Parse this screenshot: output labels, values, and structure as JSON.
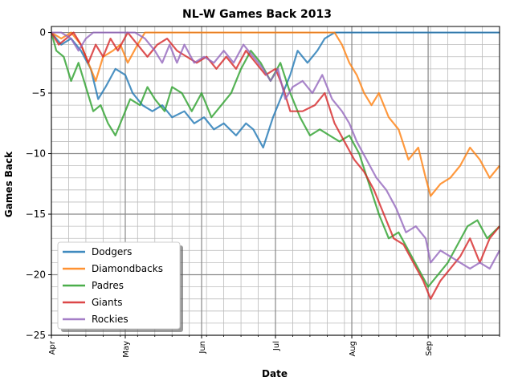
{
  "chart_data": {
    "type": "line",
    "title": "NL-W Games Back 2013",
    "xlabel": "Date",
    "ylabel": "Games Back",
    "ylim": [
      -25,
      0
    ],
    "xlim": [
      "2013-04-01",
      "2013-09-30"
    ],
    "y_ticks": [
      0,
      -5,
      -10,
      -15,
      -20,
      -25
    ],
    "y_tick_labels": [
      "0",
      "−5",
      "−10",
      "−15",
      "−20",
      "−25"
    ],
    "x_ticks": [
      "2013-04-01",
      "2013-05-01",
      "2013-06-01",
      "2013-07-01",
      "2013-08-01",
      "2013-09-01"
    ],
    "x_tick_labels": [
      "Apr",
      "May",
      "Jun",
      "Jul",
      "Aug",
      "Sep"
    ],
    "grid": "major and minor",
    "legend_position": "lower-left",
    "series": [
      {
        "name": "Dodgers",
        "color": "#1f77b4",
        "points": [
          [
            "2013-04-01",
            0
          ],
          [
            "2013-04-05",
            -1
          ],
          [
            "2013-04-09",
            -0.5
          ],
          [
            "2013-04-13",
            -1.5
          ],
          [
            "2013-04-17",
            -3
          ],
          [
            "2013-04-20",
            -5.5
          ],
          [
            "2013-04-23",
            -4.5
          ],
          [
            "2013-04-27",
            -3
          ],
          [
            "2013-05-01",
            -3.5
          ],
          [
            "2013-05-04",
            -5
          ],
          [
            "2013-05-08",
            -6
          ],
          [
            "2013-05-12",
            -6.5
          ],
          [
            "2013-05-16",
            -6
          ],
          [
            "2013-05-20",
            -7
          ],
          [
            "2013-05-25",
            -6.5
          ],
          [
            "2013-05-29",
            -7.5
          ],
          [
            "2013-06-02",
            -7
          ],
          [
            "2013-06-06",
            -8
          ],
          [
            "2013-06-10",
            -7.5
          ],
          [
            "2013-06-15",
            -8.5
          ],
          [
            "2013-06-19",
            -7.5
          ],
          [
            "2013-06-22",
            -8
          ],
          [
            "2013-06-26",
            -9.5
          ],
          [
            "2013-06-30",
            -7
          ],
          [
            "2013-07-03",
            -5.5
          ],
          [
            "2013-07-07",
            -3.5
          ],
          [
            "2013-07-10",
            -1.5
          ],
          [
            "2013-07-14",
            -2.5
          ],
          [
            "2013-07-18",
            -1.5
          ],
          [
            "2013-07-21",
            -0.5
          ],
          [
            "2013-07-25",
            0
          ],
          [
            "2013-08-01",
            0
          ],
          [
            "2013-08-15",
            0
          ],
          [
            "2013-09-01",
            0
          ],
          [
            "2013-09-15",
            0
          ],
          [
            "2013-09-30",
            0
          ]
        ]
      },
      {
        "name": "Diamondbacks",
        "color": "#ff7f0e",
        "points": [
          [
            "2013-04-01",
            0
          ],
          [
            "2013-04-05",
            -0.5
          ],
          [
            "2013-04-09",
            0
          ],
          [
            "2013-04-13",
            -1
          ],
          [
            "2013-04-16",
            -2.5
          ],
          [
            "2013-04-19",
            -4
          ],
          [
            "2013-04-22",
            -2
          ],
          [
            "2013-04-26",
            -1.5
          ],
          [
            "2013-04-29",
            -1
          ],
          [
            "2013-05-02",
            -2.5
          ],
          [
            "2013-05-06",
            -1
          ],
          [
            "2013-05-09",
            0
          ],
          [
            "2013-05-20",
            0
          ],
          [
            "2013-06-01",
            0
          ],
          [
            "2013-06-15",
            0
          ],
          [
            "2013-07-01",
            0
          ],
          [
            "2013-07-15",
            0
          ],
          [
            "2013-07-25",
            0
          ],
          [
            "2013-07-28",
            -1
          ],
          [
            "2013-07-31",
            -2.5
          ],
          [
            "2013-08-03",
            -3.5
          ],
          [
            "2013-08-06",
            -5
          ],
          [
            "2013-08-09",
            -6
          ],
          [
            "2013-08-12",
            -5
          ],
          [
            "2013-08-16",
            -7
          ],
          [
            "2013-08-20",
            -8
          ],
          [
            "2013-08-24",
            -10.5
          ],
          [
            "2013-08-28",
            -9.5
          ],
          [
            "2013-08-31",
            -12
          ],
          [
            "2013-09-02",
            -13.5
          ],
          [
            "2013-09-06",
            -12.5
          ],
          [
            "2013-09-10",
            -12
          ],
          [
            "2013-09-14",
            -11
          ],
          [
            "2013-09-18",
            -9.5
          ],
          [
            "2013-09-22",
            -10.5
          ],
          [
            "2013-09-26",
            -12
          ],
          [
            "2013-09-30",
            -11
          ]
        ]
      },
      {
        "name": "Padres",
        "color": "#2ca02c",
        "points": [
          [
            "2013-04-01",
            0
          ],
          [
            "2013-04-03",
            -1.5
          ],
          [
            "2013-04-06",
            -2
          ],
          [
            "2013-04-09",
            -4
          ],
          [
            "2013-04-12",
            -2.5
          ],
          [
            "2013-04-15",
            -4.5
          ],
          [
            "2013-04-18",
            -6.5
          ],
          [
            "2013-04-21",
            -6
          ],
          [
            "2013-04-24",
            -7.5
          ],
          [
            "2013-04-27",
            -8.5
          ],
          [
            "2013-04-30",
            -7
          ],
          [
            "2013-05-03",
            -5.5
          ],
          [
            "2013-05-07",
            -6
          ],
          [
            "2013-05-10",
            -4.5
          ],
          [
            "2013-05-13",
            -5.5
          ],
          [
            "2013-05-17",
            -6.5
          ],
          [
            "2013-05-20",
            -4.5
          ],
          [
            "2013-05-24",
            -5
          ],
          [
            "2013-05-28",
            -6.5
          ],
          [
            "2013-06-01",
            -5
          ],
          [
            "2013-06-05",
            -7
          ],
          [
            "2013-06-09",
            -6
          ],
          [
            "2013-06-13",
            -5
          ],
          [
            "2013-06-17",
            -3
          ],
          [
            "2013-06-21",
            -1.5
          ],
          [
            "2013-06-25",
            -2.5
          ],
          [
            "2013-06-29",
            -4
          ],
          [
            "2013-07-03",
            -2.5
          ],
          [
            "2013-07-07",
            -5
          ],
          [
            "2013-07-11",
            -7
          ],
          [
            "2013-07-15",
            -8.5
          ],
          [
            "2013-07-19",
            -8
          ],
          [
            "2013-07-23",
            -8.5
          ],
          [
            "2013-07-27",
            -9
          ],
          [
            "2013-07-31",
            -8.5
          ],
          [
            "2013-08-04",
            -10
          ],
          [
            "2013-08-08",
            -12.5
          ],
          [
            "2013-08-12",
            -15
          ],
          [
            "2013-08-16",
            -17
          ],
          [
            "2013-08-20",
            -16.5
          ],
          [
            "2013-08-24",
            -18
          ],
          [
            "2013-08-28",
            -19.5
          ],
          [
            "2013-09-01",
            -21
          ],
          [
            "2013-09-05",
            -20
          ],
          [
            "2013-09-09",
            -19
          ],
          [
            "2013-09-13",
            -17.5
          ],
          [
            "2013-09-17",
            -16
          ],
          [
            "2013-09-21",
            -15.5
          ],
          [
            "2013-09-25",
            -17
          ],
          [
            "2013-09-30",
            -16
          ]
        ]
      },
      {
        "name": "Giants",
        "color": "#d62728",
        "points": [
          [
            "2013-04-01",
            0
          ],
          [
            "2013-04-04",
            -1
          ],
          [
            "2013-04-07",
            -0.5
          ],
          [
            "2013-04-10",
            0
          ],
          [
            "2013-04-13",
            -1
          ],
          [
            "2013-04-16",
            -2.5
          ],
          [
            "2013-04-19",
            -1
          ],
          [
            "2013-04-22",
            -2
          ],
          [
            "2013-04-25",
            -0.5
          ],
          [
            "2013-04-28",
            -1.5
          ],
          [
            "2013-05-02",
            0
          ],
          [
            "2013-05-06",
            -1
          ],
          [
            "2013-05-10",
            -2
          ],
          [
            "2013-05-14",
            -1
          ],
          [
            "2013-05-18",
            -0.5
          ],
          [
            "2013-05-22",
            -1.5
          ],
          [
            "2013-05-26",
            -2
          ],
          [
            "2013-05-30",
            -2.5
          ],
          [
            "2013-06-03",
            -2
          ],
          [
            "2013-06-07",
            -3
          ],
          [
            "2013-06-11",
            -2
          ],
          [
            "2013-06-15",
            -3
          ],
          [
            "2013-06-19",
            -1.5
          ],
          [
            "2013-06-23",
            -2.5
          ],
          [
            "2013-06-27",
            -3.5
          ],
          [
            "2013-07-01",
            -3
          ],
          [
            "2013-07-04",
            -4.5
          ],
          [
            "2013-07-07",
            -6.5
          ],
          [
            "2013-07-12",
            -6.5
          ],
          [
            "2013-07-17",
            -6
          ],
          [
            "2013-07-21",
            -5
          ],
          [
            "2013-07-25",
            -7.5
          ],
          [
            "2013-07-29",
            -9
          ],
          [
            "2013-08-02",
            -10.5
          ],
          [
            "2013-08-06",
            -11.5
          ],
          [
            "2013-08-10",
            -13
          ],
          [
            "2013-08-14",
            -15
          ],
          [
            "2013-08-18",
            -17
          ],
          [
            "2013-08-22",
            -17.5
          ],
          [
            "2013-08-26",
            -19
          ],
          [
            "2013-08-30",
            -20.5
          ],
          [
            "2013-09-02",
            -22
          ],
          [
            "2013-09-06",
            -20.5
          ],
          [
            "2013-09-10",
            -19.5
          ],
          [
            "2013-09-14",
            -18.5
          ],
          [
            "2013-09-18",
            -17
          ],
          [
            "2013-09-22",
            -19
          ],
          [
            "2013-09-26",
            -17
          ],
          [
            "2013-09-30",
            -16
          ]
        ]
      },
      {
        "name": "Rockies",
        "color": "#9467bd",
        "points": [
          [
            "2013-04-01",
            0
          ],
          [
            "2013-04-05",
            0
          ],
          [
            "2013-04-09",
            -0.5
          ],
          [
            "2013-04-12",
            -1.5
          ],
          [
            "2013-04-15",
            -0.5
          ],
          [
            "2013-04-18",
            0
          ],
          [
            "2013-04-22",
            0
          ],
          [
            "2013-05-01",
            0
          ],
          [
            "2013-05-05",
            0
          ],
          [
            "2013-05-09",
            -0.5
          ],
          [
            "2013-05-13",
            -1.5
          ],
          [
            "2013-05-16",
            -2.5
          ],
          [
            "2013-05-19",
            -1
          ],
          [
            "2013-05-22",
            -2.5
          ],
          [
            "2013-05-25",
            -1
          ],
          [
            "2013-05-29",
            -2.5
          ],
          [
            "2013-06-02",
            -2
          ],
          [
            "2013-06-06",
            -2.5
          ],
          [
            "2013-06-10",
            -1.5
          ],
          [
            "2013-06-14",
            -2.5
          ],
          [
            "2013-06-18",
            -1
          ],
          [
            "2013-06-22",
            -2
          ],
          [
            "2013-06-26",
            -3
          ],
          [
            "2013-06-29",
            -4
          ],
          [
            "2013-07-02",
            -3
          ],
          [
            "2013-07-05",
            -5.5
          ],
          [
            "2013-07-08",
            -4.5
          ],
          [
            "2013-07-12",
            -4
          ],
          [
            "2013-07-16",
            -5
          ],
          [
            "2013-07-20",
            -3.5
          ],
          [
            "2013-07-24",
            -5.5
          ],
          [
            "2013-07-28",
            -6.5
          ],
          [
            "2013-07-31",
            -7.5
          ],
          [
            "2013-08-03",
            -9
          ],
          [
            "2013-08-07",
            -10.5
          ],
          [
            "2013-08-11",
            -12
          ],
          [
            "2013-08-15",
            -13
          ],
          [
            "2013-08-19",
            -14.5
          ],
          [
            "2013-08-23",
            -16.5
          ],
          [
            "2013-08-27",
            -16
          ],
          [
            "2013-08-31",
            -17
          ],
          [
            "2013-09-02",
            -19
          ],
          [
            "2013-09-06",
            -18
          ],
          [
            "2013-09-10",
            -18.5
          ],
          [
            "2013-09-14",
            -19
          ],
          [
            "2013-09-18",
            -19.5
          ],
          [
            "2013-09-22",
            -19
          ],
          [
            "2013-09-26",
            -19.5
          ],
          [
            "2013-09-30",
            -18
          ]
        ]
      }
    ]
  }
}
